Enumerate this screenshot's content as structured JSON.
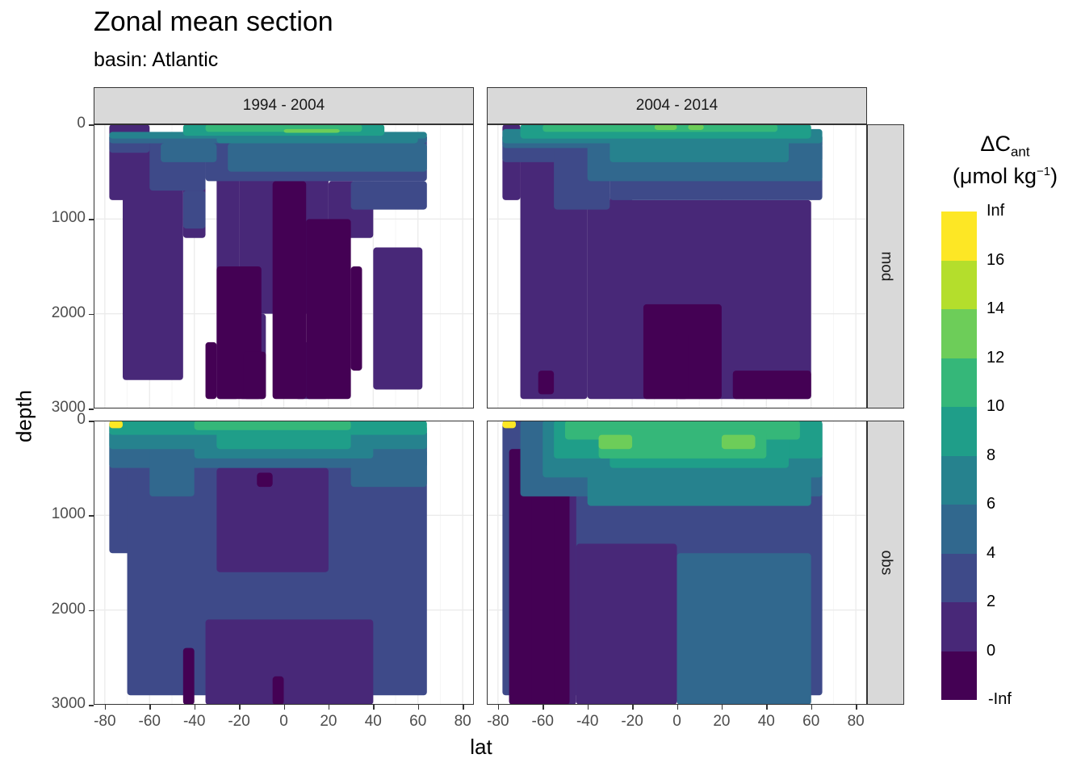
{
  "chart_data": {
    "type": "heatmap",
    "title": "Zonal mean section",
    "subtitle": "basin: Atlantic",
    "xlabel": "lat",
    "ylabel": "depth",
    "xlim": [
      -85,
      85
    ],
    "ylim": [
      3000,
      0
    ],
    "x_ticks": [
      -80,
      -60,
      -40,
      -20,
      0,
      20,
      40,
      60,
      80
    ],
    "y_ticks": [
      0,
      1000,
      2000,
      3000
    ],
    "y_reversed": true,
    "grid": true,
    "facet_columns": [
      "1994 - 2004",
      "2004 - 2014"
    ],
    "facet_rows": [
      "mod",
      "obs"
    ],
    "legend": {
      "title_main": "ΔC",
      "title_sub": "ant",
      "units_pre": "(μmol kg",
      "units_sup": "−1",
      "units_post": ")",
      "position": "right",
      "breaks": [
        "-Inf",
        "0",
        "2",
        "4",
        "6",
        "8",
        "10",
        "12",
        "14",
        "16",
        "Inf"
      ],
      "colors": [
        "#440154",
        "#482878",
        "#3E4A89",
        "#31688E",
        "#26828E",
        "#1F9E89",
        "#35B779",
        "#6DCD59",
        "#B4DE2C",
        "#FDE725"
      ]
    },
    "panels": [
      {
        "row": "mod",
        "column": "1994 - 2004",
        "lat_extent": [
          -78,
          64
        ],
        "layers": [
          {
            "level": 1,
            "cells": [
              [
                -78,
                -60,
                0,
                800
              ],
              [
                -72,
                -45,
                100,
                2700
              ],
              [
                -45,
                -35,
                100,
                1200
              ],
              [
                -30,
                -20,
                100,
                2900
              ],
              [
                -20,
                20,
                100,
                2000
              ],
              [
                -20,
                -8,
                2000,
                2900
              ],
              [
                20,
                40,
                600,
                1200
              ],
              [
                40,
                62,
                1300,
                2800
              ],
              [
                5,
                20,
                2300,
                2900
              ]
            ]
          },
          {
            "level": 0,
            "cells": [
              [
                -30,
                -10,
                1500,
                2900
              ],
              [
                -5,
                10,
                600,
                2900
              ],
              [
                10,
                30,
                1000,
                2900
              ],
              [
                30,
                35,
                1500,
                2600
              ],
              [
                -35,
                -30,
                2300,
                2900
              ],
              [
                -18,
                -8,
                2400,
                2900
              ]
            ]
          },
          {
            "level": 2,
            "cells": [
              [
                -78,
                -60,
                100,
                300
              ],
              [
                -60,
                -35,
                100,
                700
              ],
              [
                -35,
                64,
                100,
                600
              ],
              [
                -45,
                -35,
                700,
                1100
              ],
              [
                30,
                64,
                600,
                900
              ]
            ]
          },
          {
            "level": 3,
            "cells": [
              [
                -78,
                64,
                100,
                200
              ],
              [
                -55,
                -30,
                200,
                400
              ],
              [
                -25,
                64,
                200,
                500
              ]
            ]
          },
          {
            "level": 4,
            "cells": [
              [
                -78,
                64,
                80,
                150
              ],
              [
                -30,
                60,
                120,
                200
              ]
            ]
          },
          {
            "level": 5,
            "cells": [
              [
                -45,
                45,
                0,
                120
              ]
            ]
          },
          {
            "level": 6,
            "cells": [
              [
                -35,
                35,
                0,
                80
              ]
            ]
          },
          {
            "level": 7,
            "cells": [
              [
                0,
                25,
                50,
                90
              ]
            ]
          }
        ]
      },
      {
        "row": "mod",
        "column": "2004 - 2014",
        "lat_extent": [
          -78,
          65
        ],
        "layers": [
          {
            "level": 1,
            "cells": [
              [
                -78,
                -70,
                0,
                800
              ],
              [
                -70,
                -40,
                100,
                2900
              ],
              [
                -40,
                60,
                800,
                2900
              ],
              [
                -30,
                -20,
                700,
                1600
              ]
            ]
          },
          {
            "level": 0,
            "cells": [
              [
                -15,
                20,
                1900,
                2900
              ],
              [
                25,
                60,
                2600,
                2900
              ],
              [
                -62,
                -55,
                2600,
                2850
              ],
              [
                0,
                5,
                2200,
                2900
              ]
            ]
          },
          {
            "level": 2,
            "cells": [
              [
                -78,
                65,
                100,
                400
              ],
              [
                -55,
                -30,
                100,
                900
              ],
              [
                -30,
                65,
                100,
                800
              ]
            ]
          },
          {
            "level": 3,
            "cells": [
              [
                -78,
                65,
                100,
                250
              ],
              [
                -40,
                65,
                200,
                600
              ]
            ]
          },
          {
            "level": 4,
            "cells": [
              [
                -78,
                65,
                50,
                200
              ],
              [
                -30,
                50,
                150,
                400
              ]
            ]
          },
          {
            "level": 5,
            "cells": [
              [
                -70,
                60,
                0,
                150
              ]
            ]
          },
          {
            "level": 6,
            "cells": [
              [
                -60,
                45,
                0,
                80
              ]
            ]
          },
          {
            "level": 7,
            "cells": [
              [
                -10,
                0,
                0,
                60
              ],
              [
                5,
                12,
                0,
                60
              ]
            ]
          }
        ]
      },
      {
        "row": "obs",
        "column": "1994 - 2004",
        "lat_extent": [
          -78,
          64
        ],
        "layers": [
          {
            "level": 2,
            "cells": [
              [
                -78,
                -60,
                0,
                1400
              ],
              [
                -70,
                64,
                100,
                2900
              ]
            ]
          },
          {
            "level": 1,
            "cells": [
              [
                -30,
                20,
                500,
                1600
              ],
              [
                -35,
                40,
                2100,
                3000
              ],
              [
                -10,
                -5,
                550,
                700
              ]
            ]
          },
          {
            "level": 0,
            "cells": [
              [
                -12,
                -5,
                550,
                700
              ],
              [
                -45,
                -40,
                2400,
                3000
              ],
              [
                -5,
                0,
                2700,
                3000
              ]
            ]
          },
          {
            "level": 3,
            "cells": [
              [
                -78,
                64,
                100,
                500
              ],
              [
                -60,
                -40,
                200,
                800
              ],
              [
                30,
                64,
                300,
                700
              ]
            ]
          },
          {
            "level": 4,
            "cells": [
              [
                -78,
                64,
                50,
                300
              ],
              [
                -40,
                40,
                150,
                400
              ]
            ]
          },
          {
            "level": 5,
            "cells": [
              [
                -78,
                64,
                0,
                150
              ],
              [
                -30,
                30,
                100,
                300
              ]
            ]
          },
          {
            "level": 6,
            "cells": [
              [
                -40,
                30,
                0,
                100
              ]
            ]
          },
          {
            "level": 9,
            "cells": [
              [
                -78,
                -72,
                0,
                80
              ]
            ]
          }
        ]
      },
      {
        "row": "obs",
        "column": "2004 - 2014",
        "lat_extent": [
          -78,
          65
        ],
        "layers": [
          {
            "level": 2,
            "cells": [
              [
                -78,
                65,
                0,
                2900
              ],
              [
                -75,
                -48,
                0,
                3000
              ]
            ]
          },
          {
            "level": 1,
            "cells": [
              [
                -75,
                -45,
                300,
                3000
              ],
              [
                -45,
                0,
                1300,
                3000
              ],
              [
                -20,
                -5,
                1600,
                2200
              ]
            ]
          },
          {
            "level": 0,
            "cells": [
              [
                -75,
                -48,
                300,
                3000
              ],
              [
                -65,
                -55,
                200,
                3000
              ]
            ]
          },
          {
            "level": 3,
            "cells": [
              [
                -70,
                65,
                0,
                800
              ],
              [
                0,
                60,
                1400,
                3000
              ]
            ]
          },
          {
            "level": 4,
            "cells": [
              [
                -60,
                65,
                0,
                600
              ],
              [
                -40,
                60,
                300,
                900
              ]
            ]
          },
          {
            "level": 5,
            "cells": [
              [
                -55,
                65,
                0,
                400
              ],
              [
                -30,
                50,
                100,
                500
              ]
            ]
          },
          {
            "level": 6,
            "cells": [
              [
                -50,
                55,
                0,
                200
              ],
              [
                -35,
                40,
                100,
                400
              ]
            ]
          },
          {
            "level": 7,
            "cells": [
              [
                -35,
                -20,
                150,
                300
              ],
              [
                20,
                35,
                150,
                300
              ]
            ]
          },
          {
            "level": 9,
            "cells": [
              [
                -78,
                -72,
                0,
                80
              ]
            ]
          }
        ]
      }
    ]
  }
}
